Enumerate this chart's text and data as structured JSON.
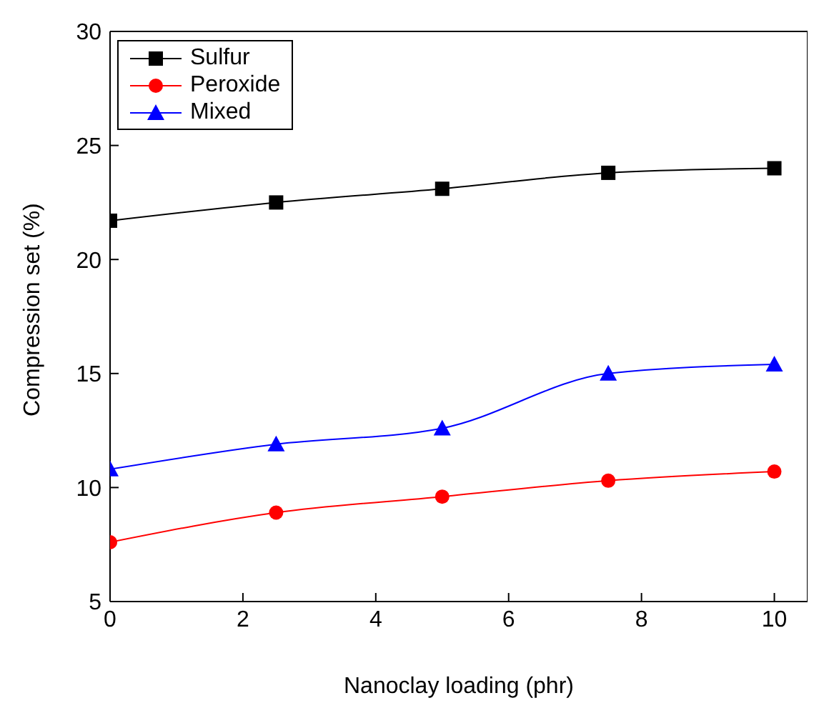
{
  "chart_data": {
    "type": "line",
    "xlabel": "Nanoclay loading (phr)",
    "ylabel": "Compression set (%)",
    "x": [
      0,
      2.5,
      5,
      7.5,
      10
    ],
    "series": [
      {
        "name": "Sulfur",
        "color": "#000000",
        "marker": "square",
        "values": [
          21.7,
          22.5,
          23.1,
          23.8,
          24.0
        ]
      },
      {
        "name": "Peroxide",
        "color": "#ff0000",
        "marker": "circle",
        "values": [
          7.6,
          8.9,
          9.6,
          10.3,
          10.7
        ]
      },
      {
        "name": "Mixed",
        "color": "#0000ff",
        "marker": "triangle",
        "values": [
          10.8,
          11.9,
          12.6,
          15.0,
          15.4
        ]
      }
    ],
    "xlim": [
      0,
      10.5
    ],
    "xticks": [
      0,
      2,
      4,
      6,
      8,
      10
    ],
    "ylim": [
      5,
      30
    ],
    "yticks": [
      5,
      10,
      15,
      20,
      25,
      30
    ],
    "grid": false,
    "legend": "top left"
  }
}
